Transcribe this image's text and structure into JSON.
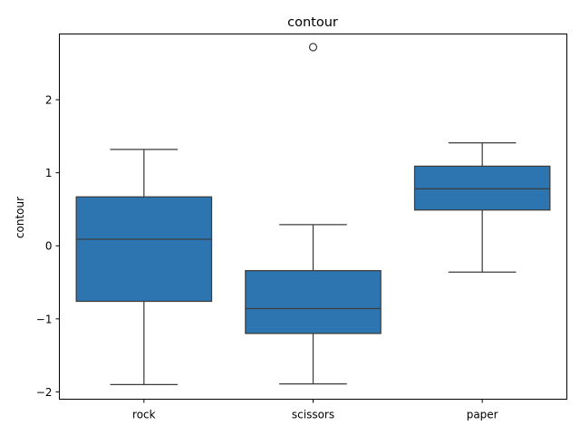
{
  "chart_data": {
    "type": "box",
    "title": "contour",
    "xlabel": "",
    "ylabel": "contour",
    "ylim": [
      -2.1,
      2.9
    ],
    "yticks": [
      -2,
      -1,
      0,
      1,
      2
    ],
    "ytick_labels": [
      "−2",
      "−1",
      "0",
      "1",
      "2"
    ],
    "color": "#2c75b0",
    "line_color": "#3d3d3d",
    "grid": false,
    "categories": [
      "rock",
      "scissors",
      "paper"
    ],
    "boxes": [
      {
        "category": "rock",
        "whisker_low": -1.9,
        "q1": -0.76,
        "median": 0.09,
        "q3": 0.67,
        "whisker_high": 1.32,
        "outliers": []
      },
      {
        "category": "scissors",
        "whisker_low": -1.89,
        "q1": -1.2,
        "median": -0.86,
        "q3": -0.34,
        "whisker_high": 0.29,
        "outliers": [
          2.72
        ]
      },
      {
        "category": "paper",
        "whisker_low": -0.36,
        "q1": 0.49,
        "median": 0.78,
        "q3": 1.09,
        "whisker_high": 1.41,
        "outliers": []
      }
    ]
  }
}
